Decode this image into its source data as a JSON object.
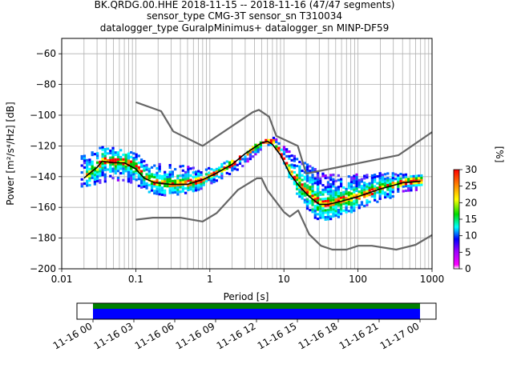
{
  "title_lines": [
    "BK.QRDG.00.HHE   2018-11-15 -- 2018-11-16  (47/47 segments)",
    "sensor_type CMG-3T sensor_sn T310034",
    "datalogger_type GuralpMinimus+ datalogger_sn MINP-DF59"
  ],
  "chart_data": [
    {
      "type": "heatmap",
      "title": "BK.QRDG.00.HHE   2018-11-15 -- 2018-11-16  (47/47 segments)",
      "xlabel": "Period [s]",
      "ylabel": "Power [m²/s⁴/Hz] [dB]",
      "xscale": "log",
      "xlim": [
        0.01,
        1000
      ],
      "ylim": [
        -200,
        -50
      ],
      "x_ticks": [
        0.01,
        0.1,
        1,
        10,
        100,
        1000
      ],
      "x_tick_labels": [
        "0.01",
        "0.1",
        "1",
        "10",
        "100",
        "1000"
      ],
      "y_ticks": [
        -200,
        -180,
        -160,
        -140,
        -120,
        -100,
        -80,
        -60
      ],
      "y_tick_labels": [
        "−200",
        "−180",
        "−160",
        "−140",
        "−120",
        "−100",
        "−80",
        "−60"
      ],
      "grid": true,
      "colorbar": {
        "label": "[%]",
        "range": [
          0,
          30
        ],
        "ticks": [
          0,
          5,
          10,
          15,
          20,
          25,
          30
        ]
      },
      "series": [
        {
          "kind": "mode",
          "color": "#000000",
          "points": [
            [
              0.02,
              -141
            ],
            [
              0.025,
              -137
            ],
            [
              0.03,
              -134
            ],
            [
              0.035,
              -130
            ],
            [
              0.05,
              -131
            ],
            [
              0.07,
              -131
            ],
            [
              0.1,
              -135
            ],
            [
              0.13,
              -141
            ],
            [
              0.18,
              -144
            ],
            [
              0.3,
              -145
            ],
            [
              0.5,
              -145
            ],
            [
              0.8,
              -142
            ],
            [
              1.2,
              -138
            ],
            [
              2,
              -132
            ],
            [
              3,
              -125
            ],
            [
              4,
              -121
            ],
            [
              5,
              -118
            ],
            [
              6,
              -117
            ],
            [
              7,
              -119
            ],
            [
              9,
              -126
            ],
            [
              12,
              -138
            ],
            [
              16,
              -146
            ],
            [
              22,
              -153
            ],
            [
              30,
              -158
            ],
            [
              40,
              -158
            ],
            [
              60,
              -156
            ],
            [
              100,
              -153
            ],
            [
              200,
              -148
            ],
            [
              400,
              -144
            ],
            [
              700,
              -143
            ]
          ]
        },
        {
          "kind": "noise_model_high",
          "color": "#666666",
          "points": [
            [
              0.1,
              -91.5
            ],
            [
              0.22,
              -97.4
            ],
            [
              0.32,
              -110.5
            ],
            [
              0.8,
              -120
            ],
            [
              3.8,
              -98
            ],
            [
              4.6,
              -96.5
            ],
            [
              6.3,
              -101
            ],
            [
              7.9,
              -113.5
            ],
            [
              15.4,
              -120
            ],
            [
              20,
              -138
            ],
            [
              354,
              -126
            ],
            [
              1000,
              -111
            ]
          ]
        },
        {
          "kind": "noise_model_low",
          "color": "#666666",
          "points": [
            [
              0.1,
              -168
            ],
            [
              0.17,
              -166.7
            ],
            [
              0.4,
              -166.7
            ],
            [
              0.8,
              -169.2
            ],
            [
              1.24,
              -163.7
            ],
            [
              2.4,
              -148.6
            ],
            [
              4.3,
              -141.1
            ],
            [
              5,
              -141.1
            ],
            [
              6,
              -149
            ],
            [
              10,
              -163
            ],
            [
              12,
              -166
            ],
            [
              15.6,
              -162
            ],
            [
              21.9,
              -177.5
            ],
            [
              31.6,
              -185
            ],
            [
              45,
              -187.5
            ],
            [
              70,
              -187.5
            ],
            [
              101,
              -185
            ],
            [
              154,
              -185
            ],
            [
              328,
              -187.5
            ],
            [
              600,
              -184.4
            ],
            [
              1000,
              -178
            ]
          ]
        }
      ],
      "cloud_envelope": {
        "x": [
          0.018,
          0.025,
          0.035,
          0.05,
          0.07,
          0.1,
          0.15,
          0.25,
          0.4,
          0.7,
          1,
          1.5,
          2.5,
          4,
          5.5,
          7,
          9,
          12,
          16,
          22,
          30,
          45,
          70,
          100,
          150,
          250,
          400,
          700
        ],
        "upper": [
          -126,
          -124,
          -121,
          -121,
          -123,
          -126,
          -132,
          -133,
          -133,
          -136,
          -135,
          -131,
          -127,
          -120,
          -116,
          -115,
          -119,
          -125,
          -128,
          -133,
          -137,
          -139,
          -139,
          -139,
          -139,
          -138,
          -139,
          -139
        ],
        "lower": [
          -147,
          -146,
          -144,
          -143,
          -143,
          -146,
          -151,
          -153,
          -152,
          -149,
          -145,
          -141,
          -135,
          -126,
          -120,
          -120,
          -128,
          -144,
          -156,
          -166,
          -169,
          -168,
          -165,
          -161,
          -158,
          -155,
          -150,
          -149
        ]
      }
    },
    {
      "type": "bar",
      "title": "",
      "x_tick_labels": [
        "11-16 00",
        "11-16 03",
        "11-16 06",
        "11-16 09",
        "11-16 12",
        "11-16 15",
        "11-16 18",
        "11-16 21",
        "11-17 00"
      ],
      "coverage": [
        {
          "color": "#008000",
          "start": "11-16 00",
          "end": "11-17 00"
        },
        {
          "color": "#0000ff",
          "start": "11-16 00",
          "end": "11-17 00"
        }
      ]
    }
  ]
}
